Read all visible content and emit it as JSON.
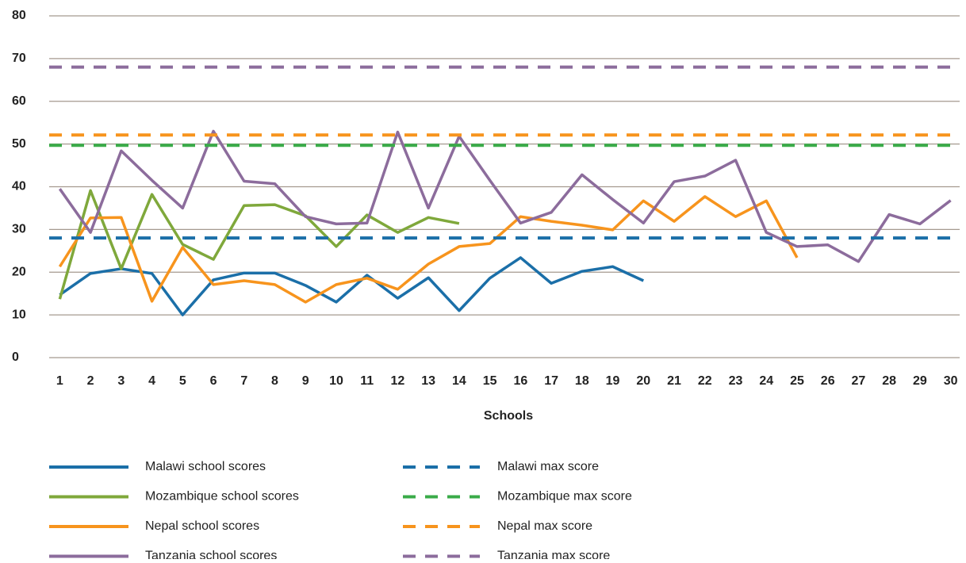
{
  "chart_data": {
    "type": "line",
    "x_label": "Schools",
    "categories": [
      "1",
      "2",
      "3",
      "4",
      "5",
      "6",
      "7",
      "8",
      "9",
      "10",
      "11",
      "12",
      "13",
      "14",
      "15",
      "16",
      "17",
      "18",
      "19",
      "20",
      "21",
      "22",
      "23",
      "24",
      "25",
      "26",
      "27",
      "28",
      "29",
      "30"
    ],
    "ylim": [
      0,
      80
    ],
    "yticks": [
      0,
      10,
      20,
      30,
      40,
      50,
      60,
      70,
      80
    ],
    "grid": true,
    "series": [
      {
        "name": "Malawi school scores",
        "color": "#1b6fa8",
        "values": [
          14.7,
          19.7,
          20.8,
          19.7,
          10,
          18.2,
          19.8,
          19.8,
          16.9,
          13,
          19.3,
          13.9,
          18.7,
          11,
          18.6,
          23.4,
          17.4,
          20.2,
          21.3,
          18,
          null,
          null,
          null,
          null,
          null,
          null,
          null,
          null,
          null,
          null
        ]
      },
      {
        "name": "Mozambique school scores",
        "color": "#7fa83b",
        "values": [
          13.7,
          39.1,
          20.8,
          38.2,
          26.5,
          23,
          35.6,
          35.8,
          33.2,
          26,
          33.4,
          29.3,
          32.8,
          31.4,
          null,
          null,
          null,
          null,
          null,
          null,
          null,
          null,
          null,
          null,
          null,
          null,
          null,
          null,
          null,
          null
        ]
      },
      {
        "name": "Nepal school scores",
        "color": "#f7941d",
        "values": [
          21.3,
          32.7,
          32.8,
          13.2,
          25.8,
          17.1,
          18,
          17.1,
          13,
          17.1,
          18.6,
          16,
          21.9,
          26,
          26.7,
          33,
          31.9,
          31,
          29.9,
          36.7,
          31.9,
          37.7,
          33,
          36.7,
          23.4,
          null,
          null,
          null,
          null,
          null
        ]
      },
      {
        "name": "Tanzania school scores",
        "color": "#8c6c9c",
        "values": [
          39.5,
          29.3,
          48.4,
          41.5,
          35,
          53,
          41.3,
          40.7,
          33,
          31.3,
          31.5,
          52.8,
          35,
          51.8,
          41.5,
          31.5,
          34,
          42.8,
          37,
          31.5,
          41.2,
          42.5,
          46.2,
          29.3,
          26,
          26.4,
          22.5,
          33.5,
          31.3,
          36.8
        ]
      },
      {
        "name": "Malawi max score",
        "color": "#1b6fa8",
        "dashed": true,
        "value": 28
      },
      {
        "name": "Mozambique max score",
        "color": "#3aab49",
        "dashed": true,
        "value": 49.7
      },
      {
        "name": "Nepal max score",
        "color": "#f7941d",
        "dashed": true,
        "value": 52.1
      },
      {
        "name": "Tanzania max score",
        "color": "#8c6c9c",
        "dashed": true,
        "value": 68
      }
    ]
  }
}
